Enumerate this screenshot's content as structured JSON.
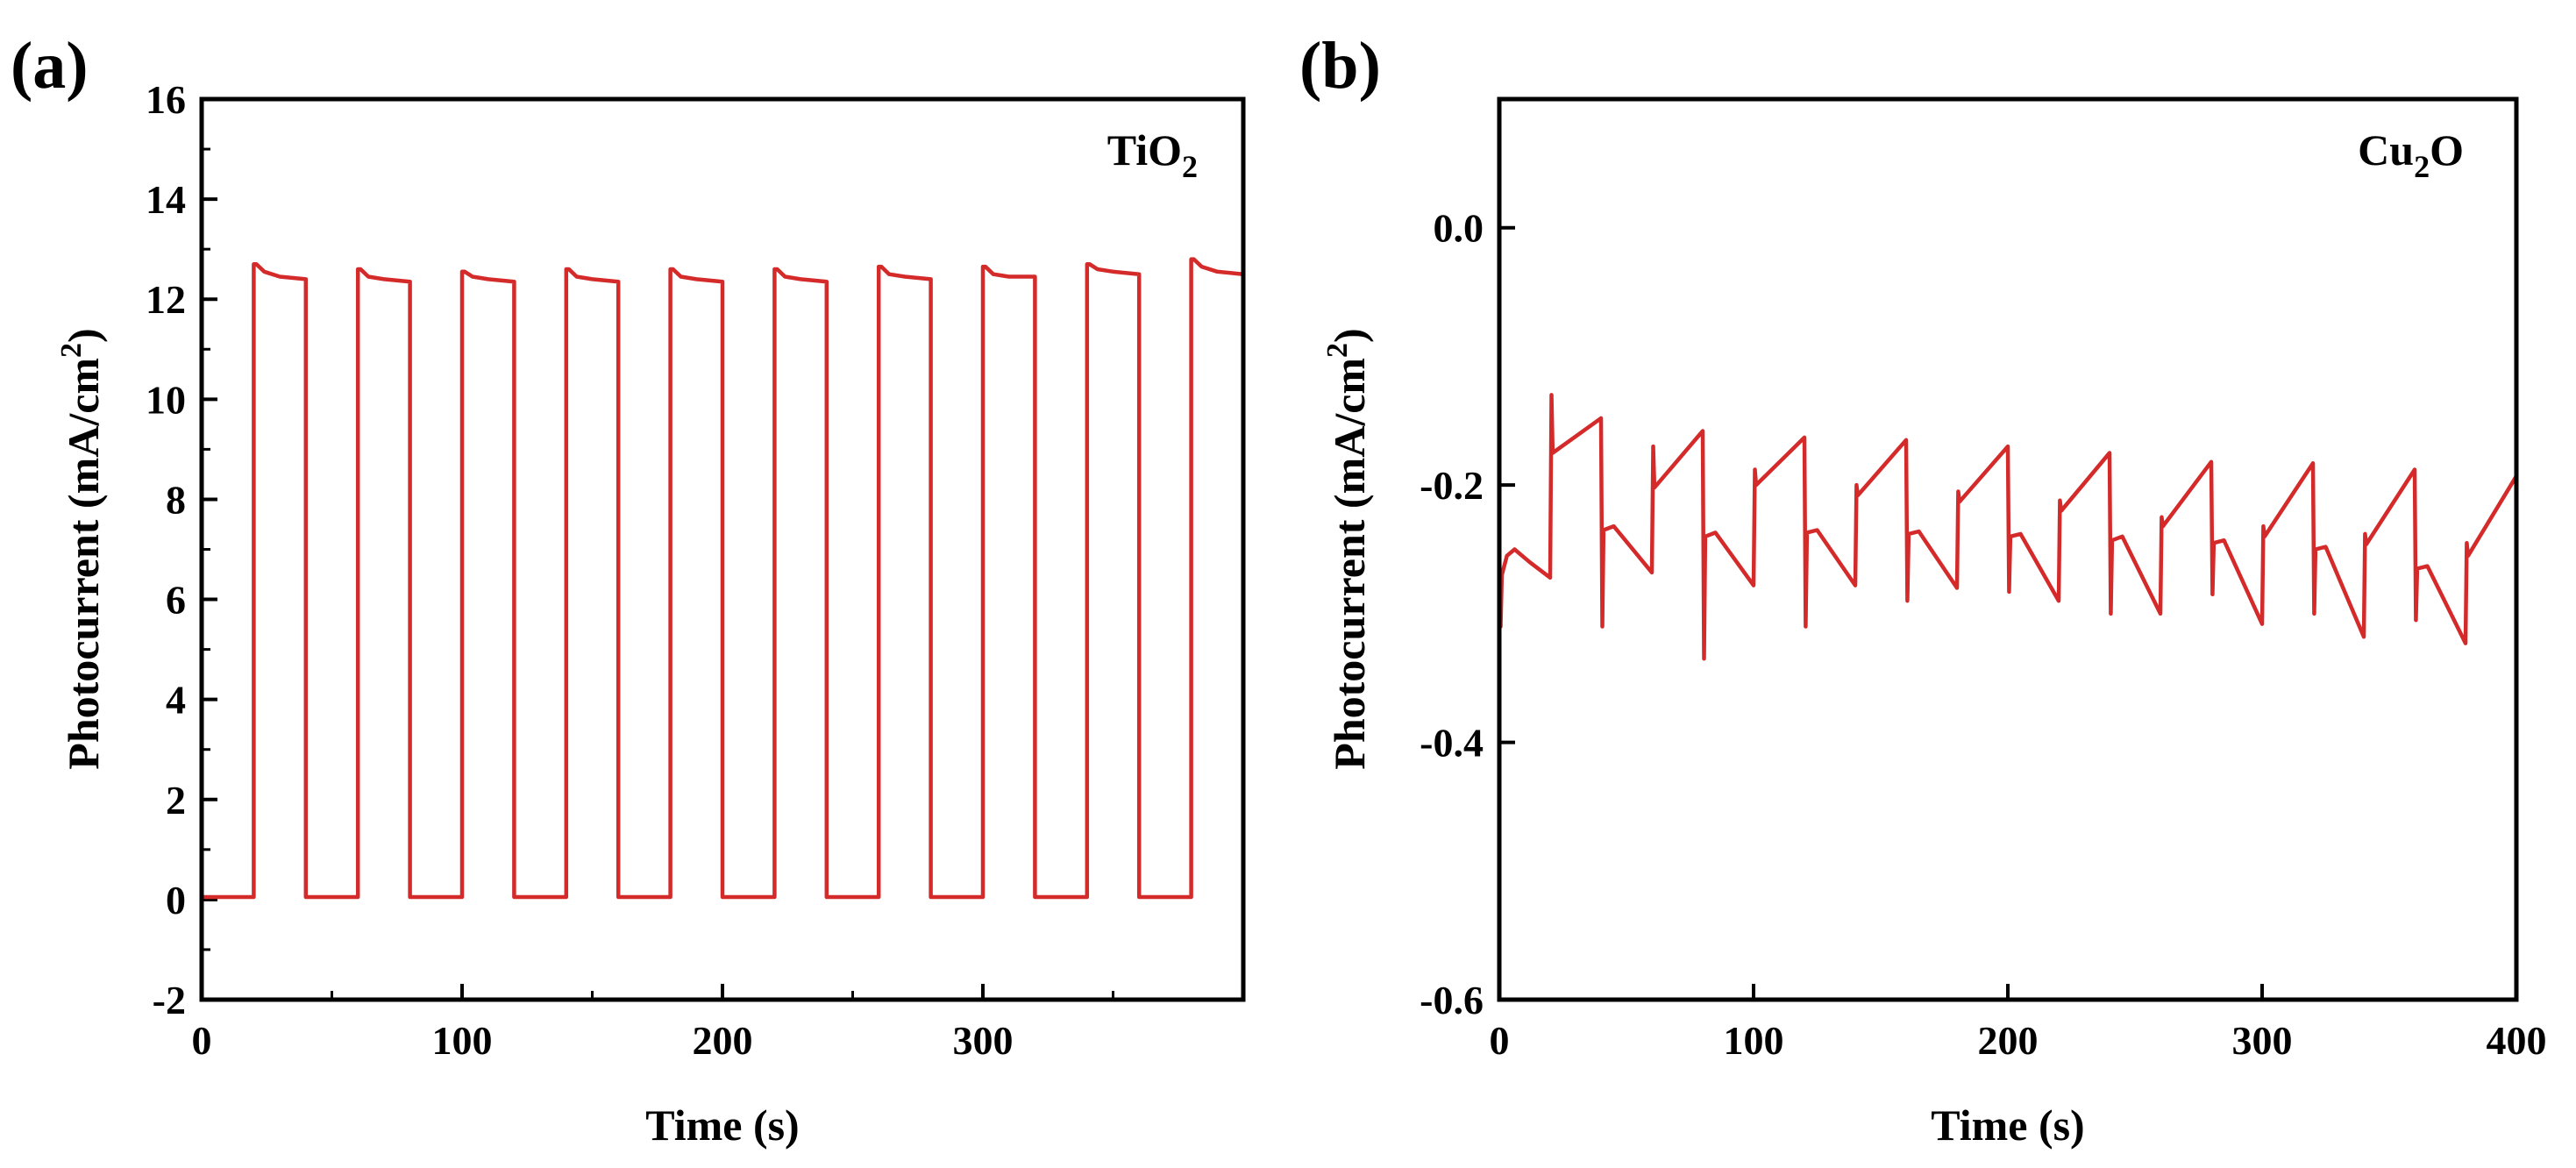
{
  "chart_data": [
    {
      "panel_label": "(a)",
      "type": "line",
      "legend": {
        "text": "TiO",
        "sub": "2"
      },
      "xlabel": "Time (s)",
      "ylabel": "Photocurrent (mA/cm",
      "ylabel_sup": "2",
      "ylabel_end": ")",
      "xlim": [
        0,
        400
      ],
      "ylim": [
        -2,
        16
      ],
      "x_ticks": [
        0,
        100,
        200,
        300
      ],
      "y_ticks": [
        -2,
        0,
        2,
        4,
        6,
        8,
        10,
        12,
        14,
        16
      ],
      "x_tick_labels": [
        "0",
        "100",
        "200",
        "300"
      ],
      "y_tick_labels": [
        "-2",
        "0",
        "2",
        "4",
        "6",
        "8",
        "10",
        "12",
        "14",
        "16"
      ],
      "series": [
        {
          "name": "TiO2",
          "color": "#d42a2a",
          "x": [
            0,
            20,
            20,
            21,
            24,
            30,
            40,
            40,
            60,
            60,
            61,
            64,
            70,
            80,
            80,
            100,
            100,
            101,
            104,
            110,
            120,
            120,
            140,
            140,
            141,
            144,
            150,
            160,
            160,
            180,
            180,
            181,
            184,
            190,
            200,
            200,
            220,
            220,
            221,
            224,
            230,
            240,
            240,
            260,
            260,
            261,
            264,
            270,
            280,
            280,
            300,
            300,
            301,
            304,
            310,
            320,
            320,
            340,
            340,
            341,
            344,
            350,
            360,
            360,
            380,
            380,
            381,
            384,
            390,
            400
          ],
          "y": [
            0.05,
            0.05,
            12.7,
            12.7,
            12.55,
            12.45,
            12.4,
            0.05,
            0.05,
            12.6,
            12.6,
            12.45,
            12.4,
            12.35,
            0.05,
            0.05,
            12.55,
            12.55,
            12.45,
            12.4,
            12.35,
            0.05,
            0.05,
            12.6,
            12.6,
            12.45,
            12.4,
            12.35,
            0.05,
            0.05,
            12.6,
            12.6,
            12.45,
            12.4,
            12.35,
            0.05,
            0.05,
            12.6,
            12.6,
            12.45,
            12.4,
            12.35,
            0.05,
            0.05,
            12.65,
            12.65,
            12.5,
            12.45,
            12.4,
            0.05,
            0.05,
            12.65,
            12.65,
            12.5,
            12.45,
            12.45,
            0.05,
            0.05,
            12.7,
            12.7,
            12.6,
            12.55,
            12.5,
            0.05,
            0.05,
            12.8,
            12.8,
            12.65,
            12.55,
            12.5
          ]
        }
      ]
    },
    {
      "panel_label": "(b)",
      "type": "line",
      "legend": {
        "text": "Cu",
        "sub": "2",
        "text_end": "O"
      },
      "xlabel": "Time (s)",
      "ylabel": "Photocurrent (mA/cm",
      "ylabel_sup": "2",
      "ylabel_end": ")",
      "xlim": [
        0,
        400
      ],
      "ylim": [
        -0.6,
        0.1
      ],
      "x_ticks": [
        0,
        100,
        200,
        300,
        400
      ],
      "y_ticks": [
        -0.6,
        -0.4,
        -0.2,
        0.0
      ],
      "x_tick_labels": [
        "0",
        "100",
        "200",
        "300",
        "400"
      ],
      "y_tick_labels": [
        "-0.6",
        "-0.4",
        "-0.2",
        "0.0"
      ],
      "series": [
        {
          "name": "Cu2O",
          "color": "#d42a2a",
          "x": [
            0,
            0.5,
            1,
            3,
            6,
            12,
            20,
            20,
            20.5,
            21,
            40,
            40,
            40.5,
            41,
            45,
            60,
            60,
            60.5,
            61,
            80,
            80,
            80.5,
            81,
            85,
            100,
            100,
            100.5,
            101,
            120,
            120,
            120.5,
            121,
            125,
            140,
            140,
            140.5,
            141,
            160,
            160,
            160.5,
            161,
            165,
            180,
            180,
            180.5,
            181,
            200,
            200,
            200.5,
            201,
            205,
            220,
            220,
            220.5,
            221,
            240,
            240,
            240.5,
            241,
            245,
            260,
            260,
            260.5,
            261,
            280,
            280,
            280.5,
            281,
            285,
            300,
            300,
            300.5,
            301,
            320,
            320,
            320.5,
            321,
            325,
            340,
            340,
            340.5,
            341,
            360,
            360,
            360.5,
            361,
            365,
            380,
            380,
            380.5,
            381,
            400
          ],
          "y": [
            -0.25,
            -0.31,
            -0.27,
            -0.255,
            -0.25,
            -0.26,
            -0.272,
            -0.272,
            -0.13,
            -0.175,
            -0.148,
            -0.148,
            -0.31,
            -0.235,
            -0.232,
            -0.268,
            -0.268,
            -0.17,
            -0.202,
            -0.158,
            -0.158,
            -0.335,
            -0.24,
            -0.237,
            -0.278,
            -0.278,
            -0.188,
            -0.2,
            -0.163,
            -0.163,
            -0.31,
            -0.237,
            -0.235,
            -0.278,
            -0.278,
            -0.2,
            -0.208,
            -0.165,
            -0.165,
            -0.29,
            -0.238,
            -0.236,
            -0.28,
            -0.28,
            -0.205,
            -0.213,
            -0.17,
            -0.17,
            -0.283,
            -0.24,
            -0.238,
            -0.29,
            -0.29,
            -0.212,
            -0.22,
            -0.175,
            -0.175,
            -0.3,
            -0.243,
            -0.24,
            -0.3,
            -0.3,
            -0.225,
            -0.232,
            -0.182,
            -0.182,
            -0.285,
            -0.245,
            -0.243,
            -0.308,
            -0.308,
            -0.232,
            -0.24,
            -0.183,
            -0.183,
            -0.3,
            -0.25,
            -0.248,
            -0.318,
            -0.318,
            -0.238,
            -0.246,
            -0.188,
            -0.188,
            -0.305,
            -0.265,
            -0.263,
            -0.323,
            -0.323,
            -0.245,
            -0.255,
            -0.193
          ]
        }
      ]
    }
  ]
}
